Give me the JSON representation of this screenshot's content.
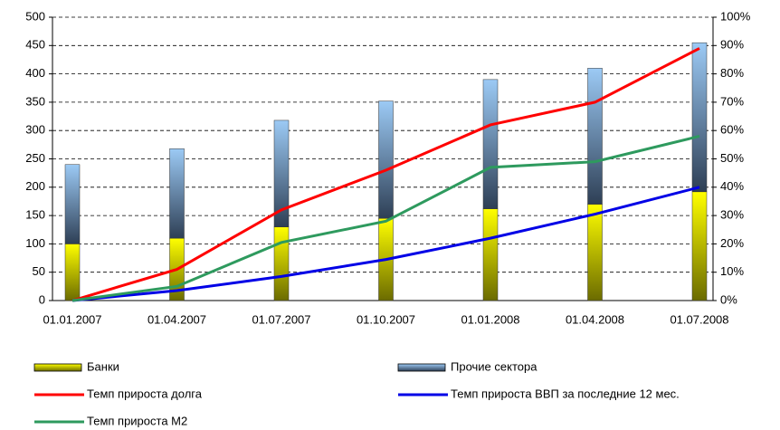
{
  "chart_data": {
    "type": "bar",
    "categories": [
      "01.01.2007",
      "01.04.2007",
      "01.07.2007",
      "01.10.2007",
      "01.01.2008",
      "01.04.2008",
      "01.07.2008"
    ],
    "series": [
      {
        "name": "Банки",
        "type": "bar",
        "color": "#e6e600",
        "values": [
          100,
          110,
          130,
          145,
          162,
          170,
          192
        ]
      },
      {
        "name": "Прочие сектора",
        "type": "bar",
        "color": "#7fa9d6",
        "values": [
          140,
          158,
          188,
          207,
          228,
          240,
          263
        ]
      },
      {
        "name": "Темп прироста долга",
        "type": "line",
        "axis": "y2",
        "color": "#ff0000",
        "values": [
          0,
          11,
          32,
          46,
          62,
          70,
          89
        ]
      },
      {
        "name": "Темп прироста ВВП за последние 12 мес.",
        "type": "line",
        "axis": "y2",
        "color": "#0000e6",
        "values": [
          0,
          3.5,
          8.5,
          14.5,
          22,
          30.5,
          40
        ]
      },
      {
        "name": "Темп прироста М2",
        "type": "line",
        "axis": "y2",
        "color": "#2e9a5e",
        "values": [
          0,
          5,
          20.5,
          28,
          47,
          49,
          58
        ]
      }
    ],
    "stacked": true,
    "ylim": [
      0,
      500
    ],
    "yticks": [
      0,
      50,
      100,
      150,
      200,
      250,
      300,
      350,
      400,
      450,
      500
    ],
    "y2lim": [
      0,
      100
    ],
    "y2ticks": [
      {
        "value": 0,
        "label": "0%"
      },
      {
        "value": 10,
        "label": "10%"
      },
      {
        "value": 20,
        "label": "20%"
      },
      {
        "value": 30,
        "label": "30%"
      },
      {
        "value": 40,
        "label": "40%"
      },
      {
        "value": 50,
        "label": "50%"
      },
      {
        "value": 60,
        "label": "60%"
      },
      {
        "value": 70,
        "label": "70%"
      },
      {
        "value": 80,
        "label": "80%"
      },
      {
        "value": 90,
        "label": "90%"
      },
      {
        "value": 100,
        "label": "100%"
      }
    ],
    "grid": true,
    "legend": "bottom"
  }
}
